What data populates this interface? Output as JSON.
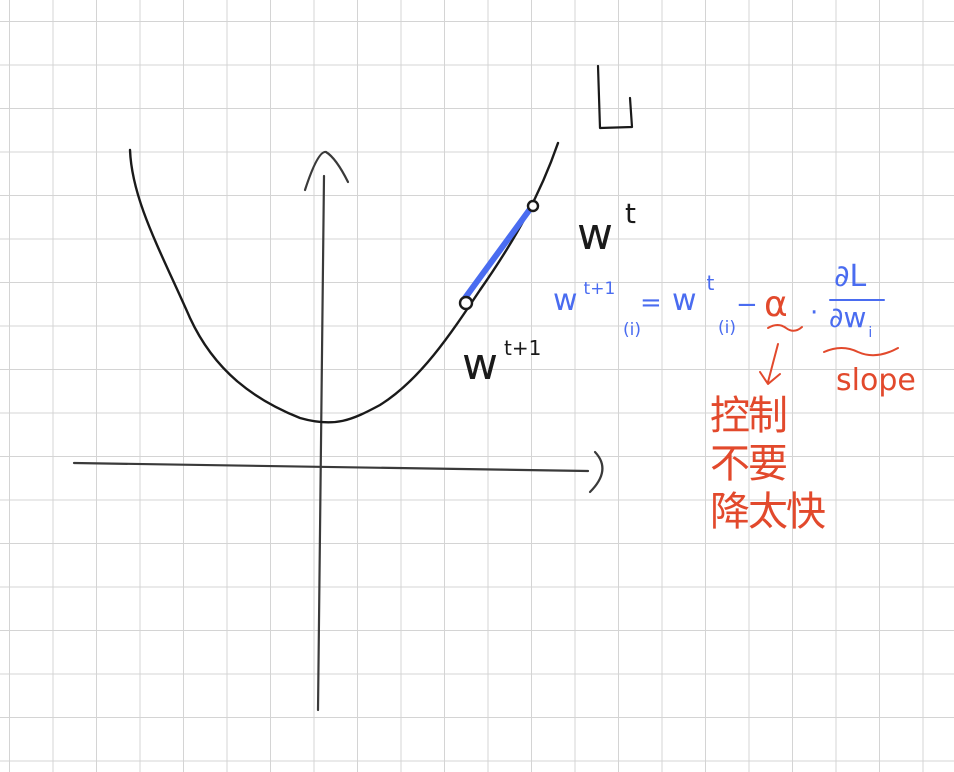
{
  "loss_label": "L",
  "point_current": {
    "base": "w",
    "sup": "t"
  },
  "point_next": {
    "base": "w",
    "sup": "t+1"
  },
  "update_rule": {
    "lhs": {
      "base": "w",
      "sup": "t+1",
      "sub": "(i)"
    },
    "equals": "=",
    "rhs": {
      "base": "w",
      "sup": "t",
      "sub": "(i)"
    },
    "minus": "−",
    "learning_rate": "α",
    "dot": "·",
    "gradient": {
      "numerator": "∂L",
      "denominator": "∂w",
      "denominator_sub": "i"
    }
  },
  "notes": {
    "learning_rate_note": [
      "控制",
      "不要",
      "降太快"
    ],
    "gradient_note": "slope"
  },
  "colors": {
    "ink": "#1a1a1a",
    "highlight": "#4a6cf0",
    "annotation": "#e2492c",
    "grid": "#d4d4d4"
  }
}
